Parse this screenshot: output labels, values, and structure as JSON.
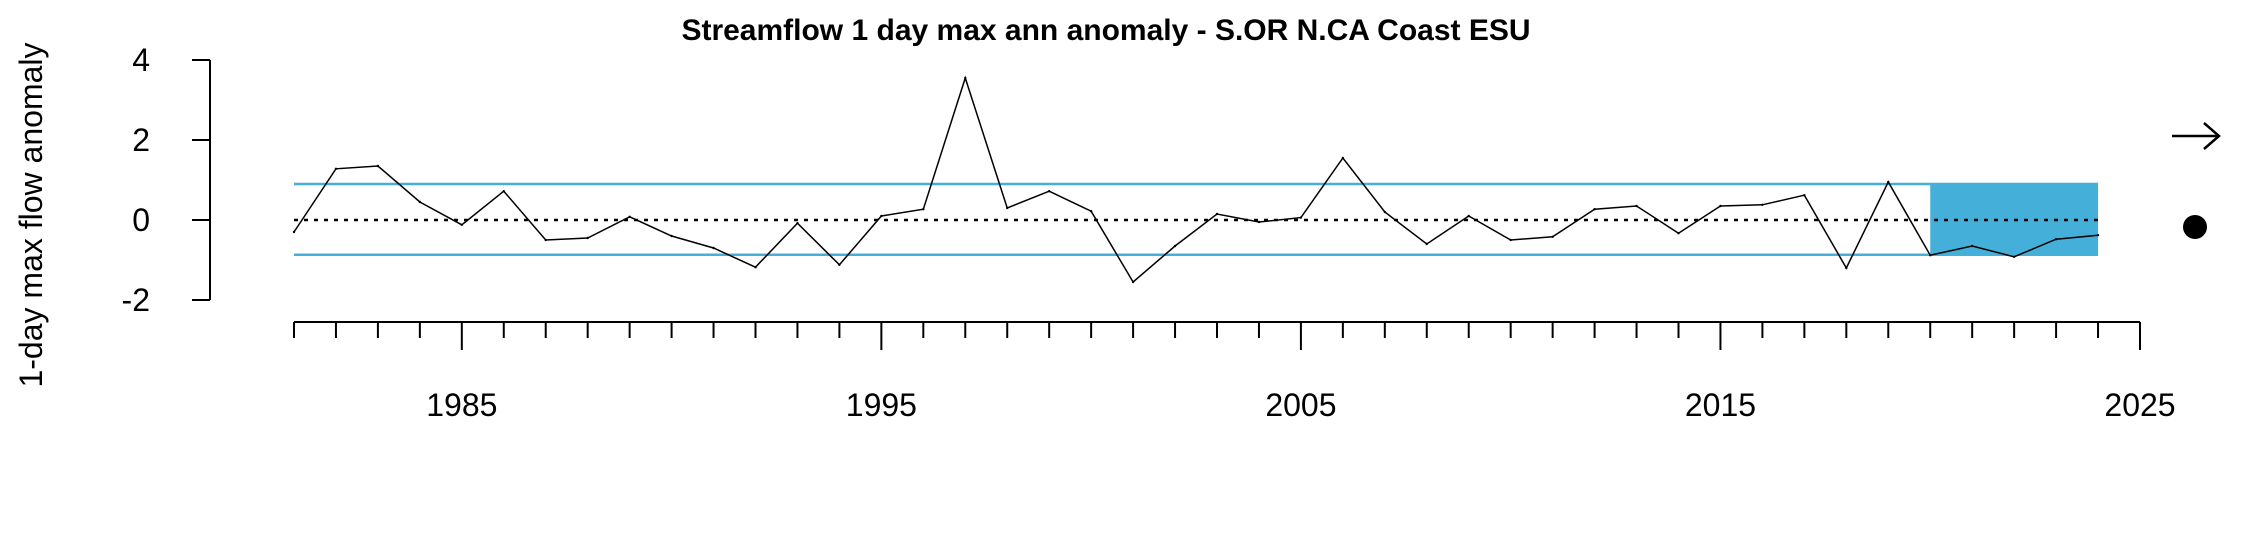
{
  "chart_data": {
    "type": "line",
    "title": "Streamflow 1 day max ann anomaly - S.OR N.CA Coast ESU",
    "xlabel": "",
    "ylabel": "1-day max flow anomaly",
    "xlim": [
      1981,
      2025
    ],
    "ylim": [
      -2,
      4
    ],
    "x_ticks_major": [
      1985,
      1995,
      2005,
      2015,
      2025
    ],
    "y_ticks": [
      4,
      2,
      0,
      -2
    ],
    "reference_lines": {
      "mean": 0,
      "upper": 0.9,
      "lower": -0.87
    },
    "highlight_range": {
      "x_start": 2020,
      "x_end": 2024
    },
    "series": [
      {
        "x": [
          1981,
          1982,
          1983,
          1984,
          1985,
          1986,
          1987,
          1988,
          1989,
          1990,
          1991,
          1992,
          1993,
          1994,
          1995,
          1996,
          1997,
          1998,
          1999,
          2000,
          2001,
          2002,
          2003,
          2004,
          2005,
          2006,
          2007,
          2008,
          2009,
          2010,
          2011,
          2012,
          2013,
          2014,
          2015,
          2016,
          2017,
          2018,
          2019,
          2020,
          2021,
          2022,
          2023,
          2024
        ],
        "values": [
          -0.3,
          1.28,
          1.35,
          0.45,
          -0.12,
          0.72,
          -0.5,
          -0.45,
          0.08,
          -0.4,
          -0.7,
          -1.18,
          -0.08,
          -1.12,
          0.1,
          0.27,
          3.55,
          0.3,
          0.72,
          0.22,
          -1.55,
          -0.65,
          0.15,
          -0.05,
          0.06,
          1.55,
          0.2,
          -0.6,
          0.1,
          -0.5,
          -0.42,
          0.27,
          0.35,
          -0.33,
          0.35,
          0.38,
          0.62,
          -1.2,
          0.95,
          -0.88,
          -0.65,
          -0.92,
          -0.48,
          -0.38
        ]
      }
    ],
    "trend_indicator": "right-arrow-icon",
    "status_indicator": "filled-circle-icon",
    "colors": {
      "band": "#44b0d9",
      "line": "#000000"
    }
  }
}
